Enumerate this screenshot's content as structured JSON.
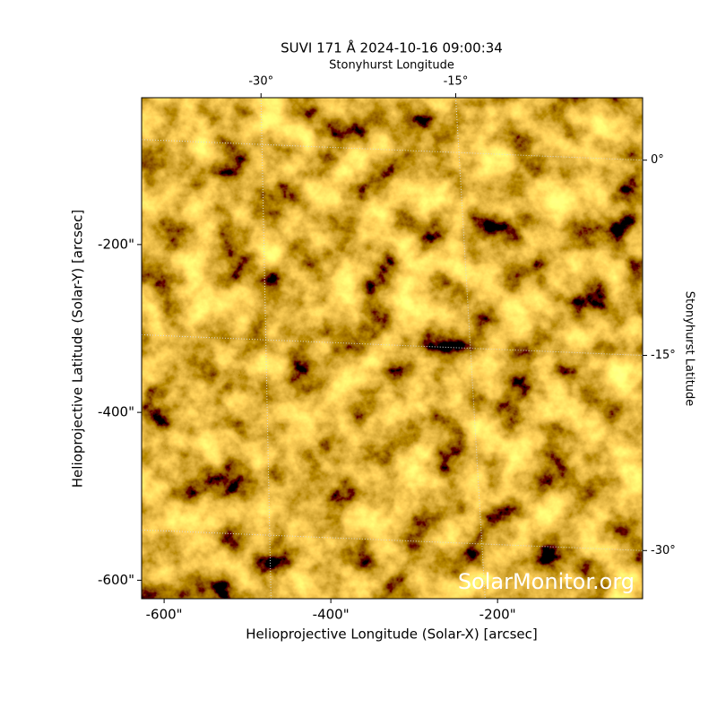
{
  "chart_data": {
    "type": "image",
    "title": "SUVI 171 Å 2024-10-16 09:00:34",
    "xlabel": "Helioprojective Longitude (Solar-X) [arcsec]",
    "ylabel": "Helioprojective Latitude (Solar-Y) [arcsec]",
    "x2label": "Stonyhurst Longitude",
    "y2label": "Stonyhurst Latitude",
    "watermark": "SolarMonitor.org",
    "xlim": [
      -627,
      -26
    ],
    "ylim": [
      -622,
      -25
    ],
    "xticks": [
      {
        "value": -600,
        "label": "-600\""
      },
      {
        "value": -400,
        "label": "-400\""
      },
      {
        "value": -200,
        "label": "-200\""
      }
    ],
    "yticks": [
      {
        "value": -200,
        "label": "-200\""
      },
      {
        "value": -400,
        "label": "-400\""
      },
      {
        "value": -600,
        "label": "-600\""
      }
    ],
    "x2lim": [
      -39.2,
      -0.6
    ],
    "y2lim": [
      -33.7,
      4.8
    ],
    "x2ticks": [
      {
        "value": -30,
        "label": "-30°"
      },
      {
        "value": -15,
        "label": "-15°"
      }
    ],
    "y2ticks": [
      {
        "value": 0,
        "label": "0°"
      },
      {
        "value": -15,
        "label": "-15°"
      },
      {
        "value": -30,
        "label": "-30°"
      }
    ],
    "grid": true
  }
}
